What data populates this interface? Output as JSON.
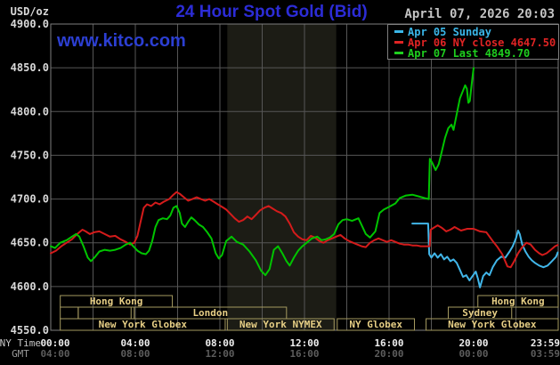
{
  "header": {
    "title": "24 Hour Spot Gold (Bid)",
    "datetime": "April 07, 2026 20:03",
    "watermark": "www.kitco.com",
    "y_unit": "USD/oz"
  },
  "legend": {
    "items": [
      {
        "label": "Apr 05 Sunday",
        "color": "#3ab6e8"
      },
      {
        "label": "Apr 06 NY close 4647.50",
        "color": "#e02424"
      },
      {
        "label": "Apr 07 Last 4849.70",
        "color": "#1fcf1f"
      }
    ]
  },
  "axes": {
    "ny_caption": "NY Time",
    "gmt_caption": "GMT",
    "x_ticks": [
      {
        "hour": 0,
        "ny": "00:00",
        "gmt": "04:00"
      },
      {
        "hour": 4,
        "ny": "04:00",
        "gmt": "08:00"
      },
      {
        "hour": 8,
        "ny": "08:00",
        "gmt": "12:00"
      },
      {
        "hour": 12,
        "ny": "12:00",
        "gmt": "16:00"
      },
      {
        "hour": 16,
        "ny": "16:00",
        "gmt": "20:00"
      },
      {
        "hour": 20,
        "ny": "20:00",
        "gmt": "00:00"
      },
      {
        "hour": 24,
        "ny": "23:59",
        "gmt": "03:59"
      }
    ],
    "y_ticks": [
      {
        "value": 4900,
        "label": "4900.0"
      },
      {
        "value": 4850,
        "label": "4850.0"
      },
      {
        "value": 4800,
        "label": "4800.0"
      },
      {
        "value": 4750,
        "label": "4750.0"
      },
      {
        "value": 4700,
        "label": "4700.0"
      },
      {
        "value": 4650,
        "label": "4650.0"
      },
      {
        "value": 4600,
        "label": "4600.0"
      },
      {
        "value": 4550,
        "label": "4550.0"
      }
    ]
  },
  "chart_data": {
    "type": "line",
    "title": "24 Hour Spot Gold (Bid)",
    "xlabel": "NY Time (hours)",
    "ylabel": "USD/oz",
    "x_range": [
      0,
      24
    ],
    "ylim": [
      4550,
      4900
    ],
    "y_grid_step": 50,
    "x_grid_step_hours": 2,
    "grid": true,
    "legend_position": "top-right",
    "highlight_band_hours": [
      8.35,
      13.5
    ],
    "series": [
      {
        "name": "Apr 05 Sunday",
        "color": "#41b6e9",
        "points": [
          [
            17.1,
            4672
          ],
          [
            17.85,
            4672
          ],
          [
            17.9,
            4637
          ],
          [
            18.0,
            4633
          ],
          [
            18.15,
            4638
          ],
          [
            18.3,
            4633
          ],
          [
            18.45,
            4637
          ],
          [
            18.6,
            4631
          ],
          [
            18.75,
            4634
          ],
          [
            18.9,
            4629
          ],
          [
            19.05,
            4631
          ],
          [
            19.2,
            4627
          ],
          [
            19.35,
            4619
          ],
          [
            19.5,
            4611
          ],
          [
            19.65,
            4613
          ],
          [
            19.8,
            4607
          ],
          [
            19.95,
            4612
          ],
          [
            20.1,
            4617
          ],
          [
            20.2,
            4609
          ],
          [
            20.3,
            4599
          ],
          [
            20.45,
            4612
          ],
          [
            20.6,
            4616
          ],
          [
            20.75,
            4613
          ],
          [
            20.9,
            4622
          ],
          [
            21.1,
            4630
          ],
          [
            21.3,
            4634
          ],
          [
            21.5,
            4633
          ],
          [
            21.7,
            4640
          ],
          [
            21.85,
            4646
          ],
          [
            22.0,
            4655
          ],
          [
            22.1,
            4664
          ],
          [
            22.18,
            4660
          ],
          [
            22.3,
            4648
          ],
          [
            22.45,
            4640
          ],
          [
            22.6,
            4634
          ],
          [
            22.75,
            4630
          ],
          [
            22.9,
            4627
          ],
          [
            23.1,
            4624
          ],
          [
            23.3,
            4622
          ],
          [
            23.5,
            4624
          ],
          [
            23.7,
            4629
          ],
          [
            23.9,
            4634
          ],
          [
            23.98,
            4639
          ]
        ]
      },
      {
        "name": "Apr 06 NY close 4647.50",
        "color": "#d41b1b",
        "points": [
          [
            0,
            4638
          ],
          [
            0.25,
            4641
          ],
          [
            0.5,
            4646
          ],
          [
            0.75,
            4650
          ],
          [
            1.0,
            4654
          ],
          [
            1.25,
            4660
          ],
          [
            1.5,
            4665
          ],
          [
            1.65,
            4663
          ],
          [
            1.85,
            4660
          ],
          [
            2.05,
            4662
          ],
          [
            2.3,
            4663
          ],
          [
            2.55,
            4660
          ],
          [
            2.8,
            4657
          ],
          [
            3.05,
            4658
          ],
          [
            3.3,
            4654
          ],
          [
            3.55,
            4651
          ],
          [
            3.75,
            4648
          ],
          [
            3.95,
            4650
          ],
          [
            4.1,
            4658
          ],
          [
            4.25,
            4674
          ],
          [
            4.4,
            4690
          ],
          [
            4.55,
            4694
          ],
          [
            4.75,
            4692
          ],
          [
            4.95,
            4696
          ],
          [
            5.15,
            4694
          ],
          [
            5.35,
            4697
          ],
          [
            5.6,
            4700
          ],
          [
            5.8,
            4705
          ],
          [
            5.95,
            4708
          ],
          [
            6.1,
            4706
          ],
          [
            6.3,
            4702
          ],
          [
            6.5,
            4698
          ],
          [
            6.7,
            4700
          ],
          [
            6.9,
            4702
          ],
          [
            7.1,
            4700
          ],
          [
            7.3,
            4698
          ],
          [
            7.5,
            4700
          ],
          [
            7.7,
            4697
          ],
          [
            7.9,
            4694
          ],
          [
            8.1,
            4691
          ],
          [
            8.3,
            4688
          ],
          [
            8.5,
            4683
          ],
          [
            8.7,
            4678
          ],
          [
            8.9,
            4674
          ],
          [
            9.1,
            4676
          ],
          [
            9.3,
            4680
          ],
          [
            9.5,
            4677
          ],
          [
            9.7,
            4682
          ],
          [
            9.9,
            4687
          ],
          [
            10.1,
            4690
          ],
          [
            10.3,
            4692
          ],
          [
            10.5,
            4689
          ],
          [
            10.7,
            4686
          ],
          [
            10.9,
            4684
          ],
          [
            11.1,
            4680
          ],
          [
            11.3,
            4672
          ],
          [
            11.5,
            4662
          ],
          [
            11.7,
            4657
          ],
          [
            11.9,
            4654
          ],
          [
            12.1,
            4653
          ],
          [
            12.3,
            4658
          ],
          [
            12.5,
            4656
          ],
          [
            12.7,
            4652
          ],
          [
            12.9,
            4650
          ],
          [
            13.1,
            4653
          ],
          [
            13.3,
            4655
          ],
          [
            13.5,
            4657
          ],
          [
            13.7,
            4659
          ],
          [
            13.9,
            4655
          ],
          [
            14.1,
            4652
          ],
          [
            14.3,
            4650
          ],
          [
            14.5,
            4648
          ],
          [
            14.7,
            4646
          ],
          [
            14.9,
            4645
          ],
          [
            15.1,
            4650
          ],
          [
            15.3,
            4653
          ],
          [
            15.5,
            4655
          ],
          [
            15.7,
            4653
          ],
          [
            15.9,
            4651
          ],
          [
            16.1,
            4653
          ],
          [
            16.3,
            4651
          ],
          [
            16.5,
            4649
          ],
          [
            16.7,
            4648
          ],
          [
            16.9,
            4648
          ],
          [
            17.1,
            4647
          ],
          [
            17.3,
            4647
          ],
          [
            17.5,
            4646
          ],
          [
            17.7,
            4646
          ],
          [
            17.92,
            4646
          ],
          [
            17.97,
            4665
          ],
          [
            18.1,
            4667
          ],
          [
            18.3,
            4670
          ],
          [
            18.5,
            4667
          ],
          [
            18.7,
            4663
          ],
          [
            18.9,
            4665
          ],
          [
            19.1,
            4668
          ],
          [
            19.4,
            4664
          ],
          [
            19.7,
            4666
          ],
          [
            20.0,
            4666
          ],
          [
            20.3,
            4663
          ],
          [
            20.6,
            4662
          ],
          [
            20.9,
            4652
          ],
          [
            21.1,
            4646
          ],
          [
            21.35,
            4637
          ],
          [
            21.6,
            4623
          ],
          [
            21.75,
            4622
          ],
          [
            21.9,
            4628
          ],
          [
            22.1,
            4638
          ],
          [
            22.3,
            4645
          ],
          [
            22.5,
            4650
          ],
          [
            22.7,
            4648
          ],
          [
            22.9,
            4642
          ],
          [
            23.1,
            4638
          ],
          [
            23.25,
            4636
          ],
          [
            23.45,
            4638
          ],
          [
            23.65,
            4642
          ],
          [
            23.85,
            4646
          ],
          [
            23.98,
            4647.5
          ]
        ]
      },
      {
        "name": "Apr 07 Last 4849.70",
        "color": "#00c400",
        "points": [
          [
            0,
            4646
          ],
          [
            0.2,
            4644
          ],
          [
            0.45,
            4650
          ],
          [
            0.75,
            4653
          ],
          [
            1.0,
            4657
          ],
          [
            1.2,
            4660
          ],
          [
            1.35,
            4657
          ],
          [
            1.55,
            4646
          ],
          [
            1.75,
            4633
          ],
          [
            1.9,
            4629
          ],
          [
            2.1,
            4634
          ],
          [
            2.3,
            4640
          ],
          [
            2.55,
            4642
          ],
          [
            2.8,
            4641
          ],
          [
            3.05,
            4642
          ],
          [
            3.3,
            4644
          ],
          [
            3.55,
            4648
          ],
          [
            3.75,
            4650
          ],
          [
            3.9,
            4646
          ],
          [
            4.1,
            4641
          ],
          [
            4.3,
            4638
          ],
          [
            4.5,
            4637
          ],
          [
            4.65,
            4641
          ],
          [
            4.8,
            4652
          ],
          [
            4.95,
            4668
          ],
          [
            5.1,
            4676
          ],
          [
            5.3,
            4678
          ],
          [
            5.5,
            4677
          ],
          [
            5.65,
            4681
          ],
          [
            5.8,
            4690
          ],
          [
            5.95,
            4692
          ],
          [
            6.1,
            4684
          ],
          [
            6.2,
            4672
          ],
          [
            6.35,
            4668
          ],
          [
            6.5,
            4674
          ],
          [
            6.65,
            4679
          ],
          [
            6.8,
            4676
          ],
          [
            7.0,
            4671
          ],
          [
            7.2,
            4668
          ],
          [
            7.4,
            4662
          ],
          [
            7.6,
            4655
          ],
          [
            7.8,
            4638
          ],
          [
            7.95,
            4632
          ],
          [
            8.1,
            4636
          ],
          [
            8.3,
            4652
          ],
          [
            8.55,
            4657
          ],
          [
            8.8,
            4651
          ],
          [
            9.1,
            4648
          ],
          [
            9.4,
            4640
          ],
          [
            9.7,
            4630
          ],
          [
            9.95,
            4618
          ],
          [
            10.15,
            4613
          ],
          [
            10.35,
            4620
          ],
          [
            10.55,
            4642
          ],
          [
            10.75,
            4646
          ],
          [
            10.95,
            4638
          ],
          [
            11.15,
            4629
          ],
          [
            11.3,
            4624
          ],
          [
            11.5,
            4633
          ],
          [
            11.7,
            4641
          ],
          [
            11.9,
            4646
          ],
          [
            12.1,
            4650
          ],
          [
            12.35,
            4655
          ],
          [
            12.6,
            4657
          ],
          [
            12.8,
            4653
          ],
          [
            13.0,
            4654
          ],
          [
            13.2,
            4656
          ],
          [
            13.4,
            4660
          ],
          [
            13.6,
            4671
          ],
          [
            13.8,
            4676
          ],
          [
            14.0,
            4677
          ],
          [
            14.25,
            4675
          ],
          [
            14.55,
            4678
          ],
          [
            14.9,
            4660
          ],
          [
            15.1,
            4656
          ],
          [
            15.35,
            4663
          ],
          [
            15.55,
            4684
          ],
          [
            15.75,
            4688
          ],
          [
            16.0,
            4691
          ],
          [
            16.3,
            4695
          ],
          [
            16.5,
            4701
          ],
          [
            16.8,
            4704
          ],
          [
            17.1,
            4705
          ],
          [
            17.4,
            4703
          ],
          [
            17.7,
            4701
          ],
          [
            17.88,
            4700
          ],
          [
            17.93,
            4746
          ],
          [
            18.05,
            4741
          ],
          [
            18.2,
            4733
          ],
          [
            18.35,
            4740
          ],
          [
            18.5,
            4755
          ],
          [
            18.65,
            4770
          ],
          [
            18.8,
            4781
          ],
          [
            18.95,
            4785
          ],
          [
            19.05,
            4779
          ],
          [
            19.2,
            4797
          ],
          [
            19.35,
            4815
          ],
          [
            19.5,
            4824
          ],
          [
            19.6,
            4830
          ],
          [
            19.68,
            4826
          ],
          [
            19.75,
            4810
          ],
          [
            19.82,
            4812
          ],
          [
            19.88,
            4825
          ],
          [
            19.95,
            4840
          ],
          [
            20.0,
            4849.7
          ]
        ]
      }
    ],
    "sessions": [
      {
        "row": 1,
        "label": "Hong Kong",
        "start_h": 0.45,
        "end_h": 5.75
      },
      {
        "row": 1,
        "label": "Hong Kong",
        "start_h": 20.2,
        "end_h": 24.0
      },
      {
        "row": 2,
        "label": "",
        "start_h": 0.45,
        "end_h": 1.3
      },
      {
        "row": 2,
        "label": "",
        "start_h": 1.3,
        "end_h": 3.8
      },
      {
        "row": 2,
        "label": "London",
        "start_h": 3.95,
        "end_h": 11.15
      },
      {
        "row": 2,
        "label": "Sydney",
        "start_h": 18.8,
        "end_h": 21.8
      },
      {
        "row": 3,
        "label": "New York Globex",
        "start_h": 0.45,
        "end_h": 8.25
      },
      {
        "row": 3,
        "label": "New York NYMEX",
        "start_h": 8.35,
        "end_h": 13.4
      },
      {
        "row": 3,
        "label": "NY Globex",
        "start_h": 13.55,
        "end_h": 17.2
      },
      {
        "row": 3,
        "label": "New York Globex",
        "start_h": 17.75,
        "end_h": 24.0
      }
    ]
  }
}
